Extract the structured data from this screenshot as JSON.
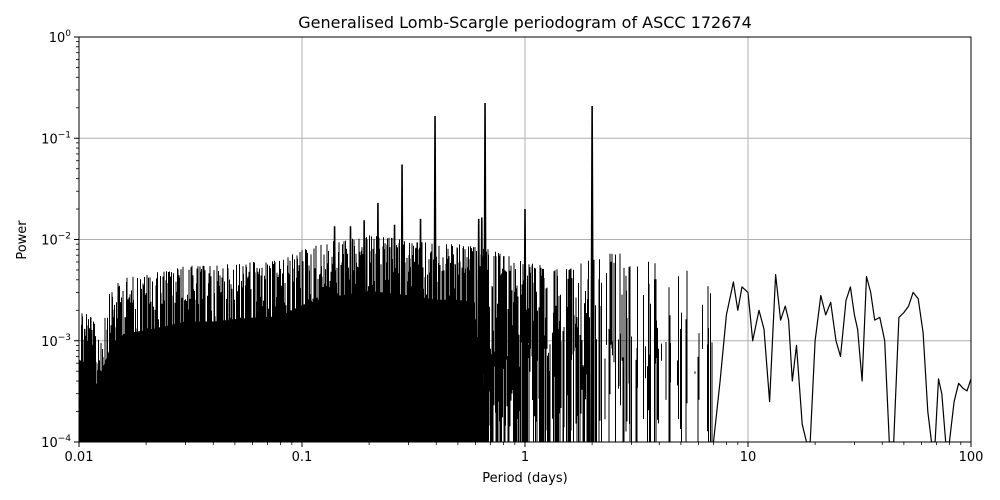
{
  "chart_data": {
    "type": "line",
    "title": "Generalised Lomb-Scargle periodogram of ASCC 172674",
    "xlabel": "Period (days)",
    "ylabel": "Power",
    "xscale": "log",
    "yscale": "log",
    "xlim": [
      0.01,
      100
    ],
    "ylim": [
      0.0001,
      1
    ],
    "grid": true,
    "legend": null,
    "line_color": "#000000",
    "grid_color": "#b0b0b0",
    "x_ticks": [
      {
        "value": 0.01,
        "label": "0.01"
      },
      {
        "value": 0.1,
        "label": "0.1"
      },
      {
        "value": 1,
        "label": "1"
      },
      {
        "value": 10,
        "label": "10"
      },
      {
        "value": 100,
        "label": "100"
      }
    ],
    "y_ticks": [
      {
        "value": 0.0001,
        "base": "10",
        "exp": "−4"
      },
      {
        "value": 0.001,
        "base": "10",
        "exp": "−3"
      },
      {
        "value": 0.01,
        "base": "10",
        "exp": "−2"
      },
      {
        "value": 0.1,
        "base": "10",
        "exp": "−1"
      },
      {
        "value": 1,
        "base": "10",
        "exp": "0"
      }
    ],
    "noise_floor_description": "dense forest of peaks from 0.01 to ~2 d with envelope ~2e-3 to 6e-3; smooth oscillation beyond ~7 d",
    "dominant_peaks": [
      {
        "period": 0.662,
        "power": 0.223
      },
      {
        "period": 2.0,
        "power": 0.208
      },
      {
        "period": 0.395,
        "power": 0.166
      },
      {
        "period": 0.281,
        "power": 0.055
      },
      {
        "period": 0.219,
        "power": 0.023
      },
      {
        "period": 1.0,
        "power": 0.02
      },
      {
        "period": 0.34,
        "power": 0.016
      },
      {
        "period": 0.62,
        "power": 0.016
      },
      {
        "period": 0.64,
        "power": 0.0165
      },
      {
        "period": 0.19,
        "power": 0.0155
      },
      {
        "period": 0.26,
        "power": 0.014
      },
      {
        "period": 0.14,
        "power": 0.0135
      },
      {
        "period": 0.165,
        "power": 0.0135
      }
    ],
    "envelope": {
      "x": [
        0.01,
        0.011,
        0.012,
        0.014,
        0.016,
        0.02,
        0.025,
        0.03,
        0.04,
        0.05,
        0.06,
        0.08,
        0.1,
        0.12,
        0.15,
        0.2,
        0.3,
        0.4,
        0.5,
        0.7,
        1.0,
        1.5,
        2.5,
        3.0,
        4.0,
        5.0,
        7.0
      ],
      "y": [
        0.0023,
        0.0021,
        0.0013,
        0.0033,
        0.0042,
        0.0045,
        0.005,
        0.0055,
        0.0055,
        0.0058,
        0.006,
        0.0062,
        0.008,
        0.009,
        0.01,
        0.011,
        0.01,
        0.009,
        0.009,
        0.008,
        0.006,
        0.005,
        0.008,
        0.007,
        0.006,
        0.0055,
        0.005
      ]
    },
    "tail_curve": {
      "x": [
        7.0,
        7.5,
        8.0,
        8.6,
        9.0,
        9.4,
        10.0,
        10.5,
        11.2,
        11.8,
        12.5,
        13.3,
        14.0,
        14.7,
        15.2,
        15.8,
        16.5,
        17.5,
        18.3,
        19.0,
        20.0,
        21.2,
        22.3,
        23.5,
        24.8,
        26.0,
        27.5,
        28.8,
        30.0,
        31.0,
        32.5,
        34.0,
        35.5,
        37.0,
        39.0,
        41.0,
        43.0,
        45.0,
        47.5,
        50.0,
        52.5,
        55.0,
        58.0,
        61.0,
        64.0,
        66.5,
        69.0,
        71.5,
        74.0,
        77.0,
        80.0,
        84.0,
        88.0,
        92.0,
        96.0,
        100.0
      ],
      "y": [
        0.0001,
        0.0004,
        0.0018,
        0.0038,
        0.002,
        0.0034,
        0.003,
        0.001,
        0.002,
        0.0013,
        0.00025,
        0.0045,
        0.0016,
        0.0022,
        0.0016,
        0.0004,
        0.0009,
        0.00015,
        0.0001,
        0.0001,
        0.001,
        0.0028,
        0.0018,
        0.0024,
        0.001,
        0.0007,
        0.0025,
        0.0034,
        0.0018,
        0.0013,
        0.0004,
        0.0043,
        0.003,
        0.0016,
        0.0017,
        0.001,
        0.0001,
        0.0001,
        0.0017,
        0.0019,
        0.0022,
        0.003,
        0.0026,
        0.0012,
        0.0002,
        0.0001,
        0.0001,
        0.00042,
        0.0003,
        0.0001,
        0.0001,
        0.00025,
        0.00038,
        0.00034,
        0.00032,
        0.00042
      ]
    }
  },
  "text": {
    "title": "Generalised Lomb-Scargle periodogram of ASCC 172674",
    "xlabel": "Period (days)",
    "ylabel": "Power"
  }
}
